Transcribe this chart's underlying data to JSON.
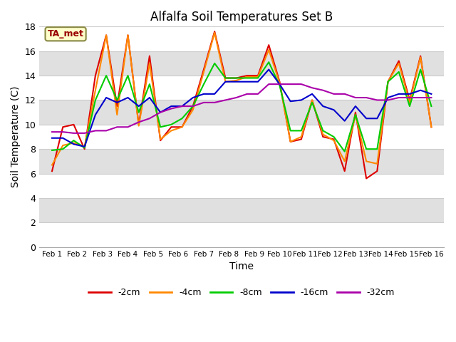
{
  "title": "Alfalfa Soil Temperatures Set B",
  "xlabel": "Time",
  "ylabel": "Soil Temperature (C)",
  "ylim": [
    0,
    18
  ],
  "yticks": [
    0,
    2,
    4,
    6,
    8,
    10,
    12,
    14,
    16,
    18
  ],
  "x_labels": [
    "Feb 1",
    "Feb 2",
    "Feb 3",
    "Feb 4",
    "Feb 5",
    "Feb 6",
    "Feb 7",
    "Feb 8",
    "Feb 9",
    "Feb 10",
    "Feb 11",
    "Feb 12",
    "Feb 13",
    "Feb 14",
    "Feb 15",
    "Feb 16"
  ],
  "annotation_label": "TA_met",
  "annotation_color": "#990000",
  "annotation_bg": "#ffffcc",
  "annotation_edge": "#888844",
  "band_colors": [
    "#ffffff",
    "#e0e0e0"
  ],
  "series": [
    {
      "key": "2cm",
      "color": "#dd0000",
      "label": "-2cm",
      "values": [
        6.2,
        9.8,
        10.0,
        8.0,
        14.0,
        17.3,
        11.5,
        17.3,
        10.0,
        15.6,
        8.7,
        9.8,
        9.8,
        11.5,
        14.5,
        17.6,
        13.8,
        13.8,
        14.0,
        14.0,
        16.5,
        13.5,
        8.6,
        8.8,
        12.0,
        9.0,
        8.8,
        6.2,
        11.0,
        5.6,
        6.2,
        13.5,
        15.2,
        12.0,
        15.6,
        9.8
      ]
    },
    {
      "key": "4cm",
      "color": "#ff8800",
      "label": "-4cm",
      "values": [
        6.7,
        8.3,
        8.5,
        8.2,
        12.8,
        17.3,
        10.8,
        17.3,
        9.9,
        15.0,
        8.8,
        9.5,
        9.8,
        11.2,
        14.3,
        17.5,
        13.5,
        13.6,
        13.9,
        13.9,
        16.1,
        13.4,
        8.6,
        9.0,
        12.0,
        9.2,
        8.7,
        7.0,
        10.8,
        7.0,
        6.8,
        13.5,
        15.0,
        11.8,
        15.5,
        9.8
      ]
    },
    {
      "key": "8cm",
      "color": "#00cc00",
      "label": "-8cm",
      "values": [
        7.9,
        8.0,
        8.7,
        8.1,
        12.0,
        14.0,
        12.0,
        14.0,
        11.0,
        13.3,
        9.8,
        10.0,
        10.5,
        11.5,
        13.3,
        15.0,
        13.8,
        13.8,
        13.8,
        13.8,
        15.1,
        13.2,
        9.5,
        9.5,
        11.8,
        9.5,
        9.0,
        7.8,
        10.8,
        8.0,
        8.0,
        13.5,
        14.3,
        11.5,
        14.5,
        11.5
      ]
    },
    {
      "key": "16cm",
      "color": "#0000cc",
      "label": "-16cm",
      "values": [
        8.9,
        8.9,
        8.4,
        8.2,
        10.8,
        12.2,
        11.8,
        12.2,
        11.5,
        12.2,
        11.0,
        11.5,
        11.5,
        12.2,
        12.5,
        12.5,
        13.5,
        13.5,
        13.5,
        13.5,
        14.5,
        13.3,
        11.9,
        12.0,
        12.5,
        11.5,
        11.2,
        10.3,
        11.5,
        10.5,
        10.5,
        12.2,
        12.5,
        12.5,
        12.8,
        12.5
      ]
    },
    {
      "key": "32cm",
      "color": "#aa00aa",
      "label": "-32cm",
      "values": [
        9.4,
        9.4,
        9.3,
        9.3,
        9.5,
        9.5,
        9.8,
        9.8,
        10.2,
        10.5,
        11.0,
        11.3,
        11.5,
        11.5,
        11.8,
        11.8,
        12.0,
        12.2,
        12.5,
        12.5,
        13.3,
        13.3,
        13.3,
        13.3,
        13.0,
        12.8,
        12.5,
        12.5,
        12.2,
        12.2,
        12.0,
        12.0,
        12.2,
        12.2,
        12.2,
        12.2
      ]
    }
  ]
}
